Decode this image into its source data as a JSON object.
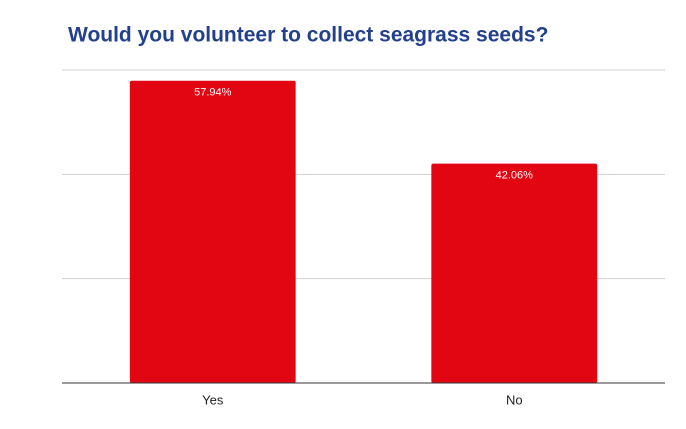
{
  "chart_data": {
    "type": "bar",
    "title": "Would you volunteer to collect seagrass seeds?",
    "categories": [
      "Yes",
      "No"
    ],
    "values": [
      57.94,
      42.06
    ],
    "value_labels": [
      "57.94%",
      "42.06%"
    ],
    "color": "#e20612",
    "ylim": [
      0,
      60
    ],
    "yticks": [
      0,
      20,
      40,
      60
    ],
    "grid": true
  }
}
